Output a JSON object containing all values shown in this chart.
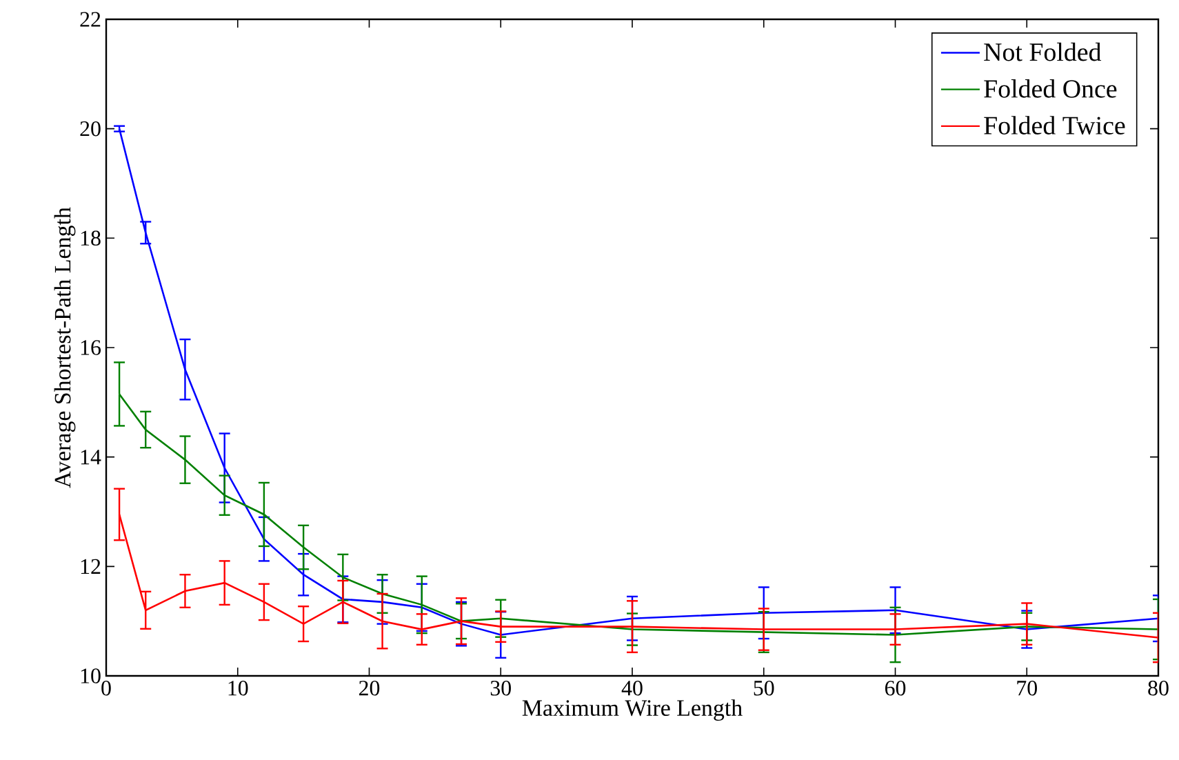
{
  "chart_data": {
    "type": "line",
    "xlabel": "Maximum Wire Length",
    "ylabel": "Average Shortest-Path Length",
    "x": [
      1,
      3,
      6,
      9,
      12,
      15,
      18,
      21,
      24,
      27,
      30,
      40,
      50,
      60,
      70,
      80
    ],
    "series": [
      {
        "name": "Not Folded",
        "color": "#0000ff",
        "values": [
          20.0,
          18.1,
          15.6,
          13.8,
          12.5,
          11.85,
          11.4,
          11.35,
          11.25,
          10.95,
          10.75,
          11.05,
          11.15,
          11.2,
          10.85,
          11.05
        ],
        "errors": [
          0.05,
          0.2,
          0.55,
          0.63,
          0.4,
          0.38,
          0.42,
          0.4,
          0.43,
          0.4,
          0.42,
          0.4,
          0.47,
          0.42,
          0.34,
          0.42
        ]
      },
      {
        "name": "Folded Once",
        "color": "#008000",
        "values": [
          15.15,
          14.5,
          13.95,
          13.3,
          12.95,
          12.35,
          11.8,
          11.5,
          11.3,
          11.0,
          11.05,
          10.85,
          10.8,
          10.75,
          10.9,
          10.85
        ],
        "errors": [
          0.58,
          0.33,
          0.43,
          0.36,
          0.58,
          0.4,
          0.42,
          0.35,
          0.52,
          0.32,
          0.34,
          0.29,
          0.37,
          0.5,
          0.25,
          0.55
        ]
      },
      {
        "name": "Folded Twice",
        "color": "#ff0000",
        "values": [
          12.95,
          11.2,
          11.55,
          11.7,
          11.35,
          10.95,
          11.35,
          11.0,
          10.85,
          11.0,
          10.9,
          10.9,
          10.85,
          10.85,
          10.95,
          10.7
        ],
        "errors": [
          0.47,
          0.34,
          0.3,
          0.4,
          0.33,
          0.32,
          0.39,
          0.5,
          0.28,
          0.42,
          0.28,
          0.47,
          0.38,
          0.28,
          0.38,
          0.45
        ]
      }
    ],
    "xlim": [
      0,
      80
    ],
    "ylim": [
      10,
      22
    ],
    "xticks": [
      0,
      10,
      20,
      30,
      40,
      50,
      60,
      70,
      80
    ],
    "yticks": [
      10,
      12,
      14,
      16,
      18,
      20,
      22
    ],
    "legend": "top right",
    "grid": false,
    "marker": "none",
    "line_style": "solid"
  }
}
